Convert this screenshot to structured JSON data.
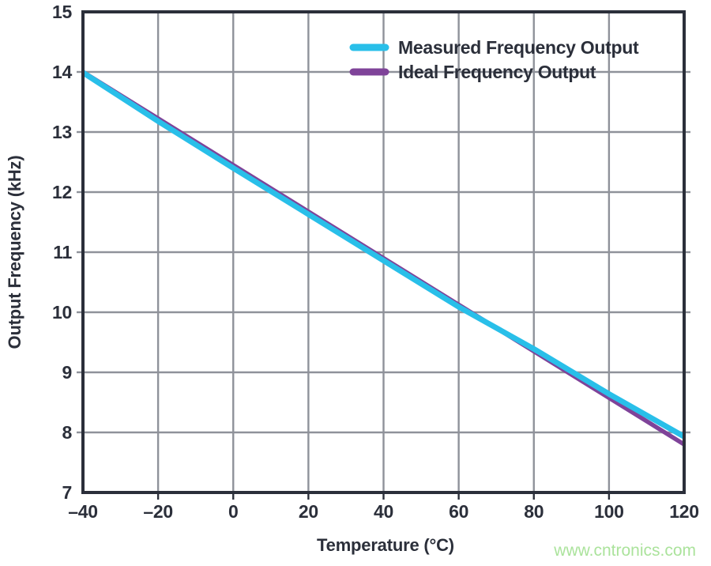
{
  "chart_data": {
    "type": "line",
    "title": "",
    "xlabel": "Temperature (°C)",
    "ylabel": "Output Frequency (kHz)",
    "xlim": [
      -40,
      120
    ],
    "ylim": [
      7,
      15
    ],
    "x_ticks": [
      -40,
      -20,
      0,
      20,
      40,
      60,
      80,
      100,
      120
    ],
    "y_ticks": [
      7,
      8,
      9,
      10,
      11,
      12,
      13,
      14,
      15
    ],
    "grid": true,
    "legend_position": "top-right-inside",
    "x": [
      -40,
      -20,
      0,
      20,
      40,
      60,
      80,
      100,
      120
    ],
    "series": [
      {
        "name": "Measured Frequency Output",
        "color": "#29bfe9",
        "stroke_width": 7,
        "values": [
          13.99,
          13.18,
          12.4,
          11.63,
          10.86,
          10.09,
          9.39,
          8.64,
          7.93
        ]
      },
      {
        "name": "Ideal Frequency Output",
        "color": "#7f4399",
        "stroke_width": 5.5,
        "values": [
          14.0,
          13.225,
          12.45,
          11.675,
          10.9,
          10.125,
          9.35,
          8.575,
          7.8
        ]
      }
    ]
  },
  "watermark": {
    "text": "www.cntronics.com",
    "color": "#abe39c"
  },
  "colors": {
    "axis": "#2b2f3a",
    "grid": "#8f929a",
    "background": "#ffffff"
  }
}
